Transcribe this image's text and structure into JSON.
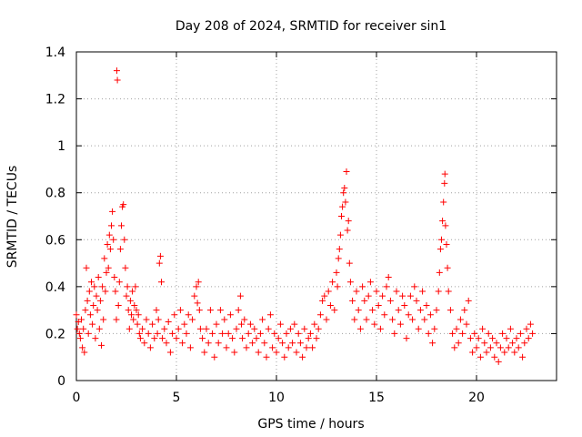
{
  "chart_data": {
    "type": "scatter",
    "title": "Day 208 of 2024, SRMTID for receiver sin1",
    "xlabel": "GPS time / hours",
    "ylabel": "SRMTID / TECUs",
    "xlim": [
      0,
      24
    ],
    "ylim": [
      0,
      1.4
    ],
    "xticks": [
      0,
      5,
      10,
      15,
      20
    ],
    "xtick_labels": [
      "0",
      "5",
      "10",
      "15",
      "20"
    ],
    "yticks": [
      0,
      0.2,
      0.4,
      0.6,
      0.8,
      1.0,
      1.2,
      1.4
    ],
    "ytick_labels": [
      "0",
      "0.2",
      "0.4",
      "0.6",
      "0.8",
      "1",
      "1.2",
      "1.4"
    ],
    "grid": true,
    "marker": "+",
    "color": "#ff0000",
    "series": [
      {
        "name": "sin1",
        "points": [
          [
            0.0,
            0.28
          ],
          [
            0.05,
            0.22
          ],
          [
            0.1,
            0.25
          ],
          [
            0.15,
            0.2
          ],
          [
            0.2,
            0.18
          ],
          [
            0.25,
            0.26
          ],
          [
            0.3,
            0.14
          ],
          [
            0.35,
            0.22
          ],
          [
            0.4,
            0.12
          ],
          [
            0.45,
            0.3
          ],
          [
            0.5,
            0.48
          ],
          [
            0.55,
            0.34
          ],
          [
            0.6,
            0.2
          ],
          [
            0.65,
            0.38
          ],
          [
            0.7,
            0.28
          ],
          [
            0.75,
            0.42
          ],
          [
            0.8,
            0.24
          ],
          [
            0.85,
            0.32
          ],
          [
            0.9,
            0.4
          ],
          [
            0.95,
            0.18
          ],
          [
            1.0,
            0.36
          ],
          [
            1.05,
            0.3
          ],
          [
            1.1,
            0.44
          ],
          [
            1.15,
            0.22
          ],
          [
            1.2,
            0.34
          ],
          [
            1.25,
            0.15
          ],
          [
            1.3,
            0.4
          ],
          [
            1.35,
            0.26
          ],
          [
            1.4,
            0.52
          ],
          [
            1.45,
            0.38
          ],
          [
            1.5,
            0.46
          ],
          [
            1.55,
            0.58
          ],
          [
            1.6,
            0.48
          ],
          [
            1.65,
            0.62
          ],
          [
            1.7,
            0.56
          ],
          [
            1.75,
            0.66
          ],
          [
            1.8,
            0.72
          ],
          [
            1.85,
            0.6
          ],
          [
            1.9,
            0.44
          ],
          [
            1.95,
            0.38
          ],
          [
            2.0,
            0.26
          ],
          [
            2.02,
            1.32
          ],
          [
            2.05,
            1.28
          ],
          [
            2.1,
            0.32
          ],
          [
            2.15,
            0.42
          ],
          [
            2.2,
            0.56
          ],
          [
            2.25,
            0.66
          ],
          [
            2.3,
            0.74
          ],
          [
            2.35,
            0.75
          ],
          [
            2.4,
            0.6
          ],
          [
            2.45,
            0.48
          ],
          [
            2.5,
            0.36
          ],
          [
            2.55,
            0.4
          ],
          [
            2.6,
            0.3
          ],
          [
            2.65,
            0.22
          ],
          [
            2.7,
            0.34
          ],
          [
            2.75,
            0.28
          ],
          [
            2.8,
            0.38
          ],
          [
            2.85,
            0.26
          ],
          [
            2.9,
            0.32
          ],
          [
            2.95,
            0.4
          ],
          [
            3.0,
            0.3
          ],
          [
            3.05,
            0.24
          ],
          [
            3.1,
            0.28
          ],
          [
            3.15,
            0.2
          ],
          [
            3.2,
            0.18
          ],
          [
            3.3,
            0.22
          ],
          [
            3.4,
            0.16
          ],
          [
            3.5,
            0.26
          ],
          [
            3.6,
            0.2
          ],
          [
            3.7,
            0.14
          ],
          [
            3.8,
            0.24
          ],
          [
            3.9,
            0.18
          ],
          [
            4.0,
            0.3
          ],
          [
            4.05,
            0.2
          ],
          [
            4.1,
            0.26
          ],
          [
            4.15,
            0.5
          ],
          [
            4.2,
            0.53
          ],
          [
            4.25,
            0.42
          ],
          [
            4.3,
            0.18
          ],
          [
            4.4,
            0.22
          ],
          [
            4.5,
            0.16
          ],
          [
            4.6,
            0.25
          ],
          [
            4.7,
            0.12
          ],
          [
            4.8,
            0.2
          ],
          [
            4.9,
            0.28
          ],
          [
            5.0,
            0.18
          ],
          [
            5.1,
            0.22
          ],
          [
            5.2,
            0.3
          ],
          [
            5.3,
            0.16
          ],
          [
            5.4,
            0.24
          ],
          [
            5.5,
            0.2
          ],
          [
            5.6,
            0.28
          ],
          [
            5.7,
            0.14
          ],
          [
            5.8,
            0.26
          ],
          [
            5.9,
            0.36
          ],
          [
            6.0,
            0.4
          ],
          [
            6.05,
            0.33
          ],
          [
            6.1,
            0.42
          ],
          [
            6.15,
            0.3
          ],
          [
            6.2,
            0.22
          ],
          [
            6.3,
            0.18
          ],
          [
            6.4,
            0.12
          ],
          [
            6.5,
            0.22
          ],
          [
            6.6,
            0.16
          ],
          [
            6.7,
            0.3
          ],
          [
            6.8,
            0.2
          ],
          [
            6.9,
            0.1
          ],
          [
            7.0,
            0.24
          ],
          [
            7.1,
            0.16
          ],
          [
            7.2,
            0.3
          ],
          [
            7.3,
            0.2
          ],
          [
            7.4,
            0.26
          ],
          [
            7.5,
            0.14
          ],
          [
            7.6,
            0.2
          ],
          [
            7.7,
            0.28
          ],
          [
            7.8,
            0.18
          ],
          [
            7.9,
            0.12
          ],
          [
            8.0,
            0.22
          ],
          [
            8.1,
            0.3
          ],
          [
            8.2,
            0.36
          ],
          [
            8.25,
            0.24
          ],
          [
            8.3,
            0.18
          ],
          [
            8.4,
            0.26
          ],
          [
            8.5,
            0.14
          ],
          [
            8.6,
            0.2
          ],
          [
            8.7,
            0.24
          ],
          [
            8.8,
            0.16
          ],
          [
            8.9,
            0.22
          ],
          [
            9.0,
            0.18
          ],
          [
            9.1,
            0.12
          ],
          [
            9.2,
            0.2
          ],
          [
            9.3,
            0.26
          ],
          [
            9.4,
            0.16
          ],
          [
            9.5,
            0.1
          ],
          [
            9.6,
            0.22
          ],
          [
            9.7,
            0.28
          ],
          [
            9.8,
            0.14
          ],
          [
            9.9,
            0.2
          ],
          [
            10.0,
            0.12
          ],
          [
            10.1,
            0.18
          ],
          [
            10.2,
            0.24
          ],
          [
            10.3,
            0.16
          ],
          [
            10.4,
            0.1
          ],
          [
            10.5,
            0.2
          ],
          [
            10.6,
            0.14
          ],
          [
            10.7,
            0.22
          ],
          [
            10.8,
            0.16
          ],
          [
            10.9,
            0.24
          ],
          [
            11.0,
            0.12
          ],
          [
            11.1,
            0.2
          ],
          [
            11.2,
            0.16
          ],
          [
            11.3,
            0.1
          ],
          [
            11.4,
            0.22
          ],
          [
            11.5,
            0.14
          ],
          [
            11.6,
            0.18
          ],
          [
            11.7,
            0.2
          ],
          [
            11.8,
            0.14
          ],
          [
            11.9,
            0.24
          ],
          [
            12.0,
            0.18
          ],
          [
            12.1,
            0.22
          ],
          [
            12.2,
            0.28
          ],
          [
            12.3,
            0.34
          ],
          [
            12.4,
            0.36
          ],
          [
            12.5,
            0.26
          ],
          [
            12.6,
            0.38
          ],
          [
            12.7,
            0.32
          ],
          [
            12.8,
            0.42
          ],
          [
            12.9,
            0.3
          ],
          [
            13.0,
            0.46
          ],
          [
            13.05,
            0.4
          ],
          [
            13.1,
            0.52
          ],
          [
            13.15,
            0.56
          ],
          [
            13.2,
            0.62
          ],
          [
            13.25,
            0.7
          ],
          [
            13.3,
            0.74
          ],
          [
            13.35,
            0.8
          ],
          [
            13.4,
            0.82
          ],
          [
            13.45,
            0.76
          ],
          [
            13.5,
            0.89
          ],
          [
            13.55,
            0.64
          ],
          [
            13.6,
            0.68
          ],
          [
            13.65,
            0.5
          ],
          [
            13.7,
            0.42
          ],
          [
            13.8,
            0.34
          ],
          [
            13.9,
            0.26
          ],
          [
            14.0,
            0.38
          ],
          [
            14.1,
            0.3
          ],
          [
            14.2,
            0.22
          ],
          [
            14.3,
            0.4
          ],
          [
            14.4,
            0.34
          ],
          [
            14.5,
            0.26
          ],
          [
            14.6,
            0.36
          ],
          [
            14.7,
            0.42
          ],
          [
            14.8,
            0.3
          ],
          [
            14.9,
            0.24
          ],
          [
            15.0,
            0.38
          ],
          [
            15.1,
            0.32
          ],
          [
            15.2,
            0.22
          ],
          [
            15.3,
            0.36
          ],
          [
            15.4,
            0.28
          ],
          [
            15.5,
            0.4
          ],
          [
            15.6,
            0.44
          ],
          [
            15.7,
            0.34
          ],
          [
            15.8,
            0.26
          ],
          [
            15.9,
            0.2
          ],
          [
            16.0,
            0.38
          ],
          [
            16.1,
            0.3
          ],
          [
            16.2,
            0.24
          ],
          [
            16.3,
            0.36
          ],
          [
            16.4,
            0.32
          ],
          [
            16.5,
            0.18
          ],
          [
            16.6,
            0.28
          ],
          [
            16.7,
            0.36
          ],
          [
            16.8,
            0.26
          ],
          [
            16.9,
            0.4
          ],
          [
            17.0,
            0.34
          ],
          [
            17.1,
            0.22
          ],
          [
            17.2,
            0.3
          ],
          [
            17.3,
            0.38
          ],
          [
            17.4,
            0.26
          ],
          [
            17.5,
            0.32
          ],
          [
            17.6,
            0.2
          ],
          [
            17.7,
            0.28
          ],
          [
            17.8,
            0.16
          ],
          [
            17.9,
            0.22
          ],
          [
            18.0,
            0.3
          ],
          [
            18.1,
            0.38
          ],
          [
            18.15,
            0.46
          ],
          [
            18.2,
            0.56
          ],
          [
            18.25,
            0.6
          ],
          [
            18.3,
            0.68
          ],
          [
            18.35,
            0.76
          ],
          [
            18.4,
            0.84
          ],
          [
            18.42,
            0.88
          ],
          [
            18.45,
            0.66
          ],
          [
            18.5,
            0.58
          ],
          [
            18.55,
            0.48
          ],
          [
            18.6,
            0.38
          ],
          [
            18.7,
            0.3
          ],
          [
            18.8,
            0.2
          ],
          [
            18.9,
            0.14
          ],
          [
            19.0,
            0.22
          ],
          [
            19.1,
            0.16
          ],
          [
            19.2,
            0.26
          ],
          [
            19.3,
            0.2
          ],
          [
            19.4,
            0.3
          ],
          [
            19.5,
            0.24
          ],
          [
            19.6,
            0.34
          ],
          [
            19.7,
            0.18
          ],
          [
            19.8,
            0.12
          ],
          [
            19.9,
            0.2
          ],
          [
            20.0,
            0.14
          ],
          [
            20.1,
            0.18
          ],
          [
            20.2,
            0.1
          ],
          [
            20.3,
            0.22
          ],
          [
            20.4,
            0.16
          ],
          [
            20.5,
            0.12
          ],
          [
            20.6,
            0.2
          ],
          [
            20.7,
            0.14
          ],
          [
            20.8,
            0.18
          ],
          [
            20.9,
            0.1
          ],
          [
            21.0,
            0.16
          ],
          [
            21.1,
            0.08
          ],
          [
            21.2,
            0.14
          ],
          [
            21.3,
            0.2
          ],
          [
            21.4,
            0.12
          ],
          [
            21.5,
            0.18
          ],
          [
            21.6,
            0.14
          ],
          [
            21.7,
            0.22
          ],
          [
            21.8,
            0.16
          ],
          [
            21.9,
            0.12
          ],
          [
            22.0,
            0.18
          ],
          [
            22.1,
            0.14
          ],
          [
            22.2,
            0.2
          ],
          [
            22.3,
            0.1
          ],
          [
            22.4,
            0.16
          ],
          [
            22.5,
            0.22
          ],
          [
            22.6,
            0.18
          ],
          [
            22.7,
            0.24
          ],
          [
            22.8,
            0.2
          ]
        ]
      }
    ]
  }
}
